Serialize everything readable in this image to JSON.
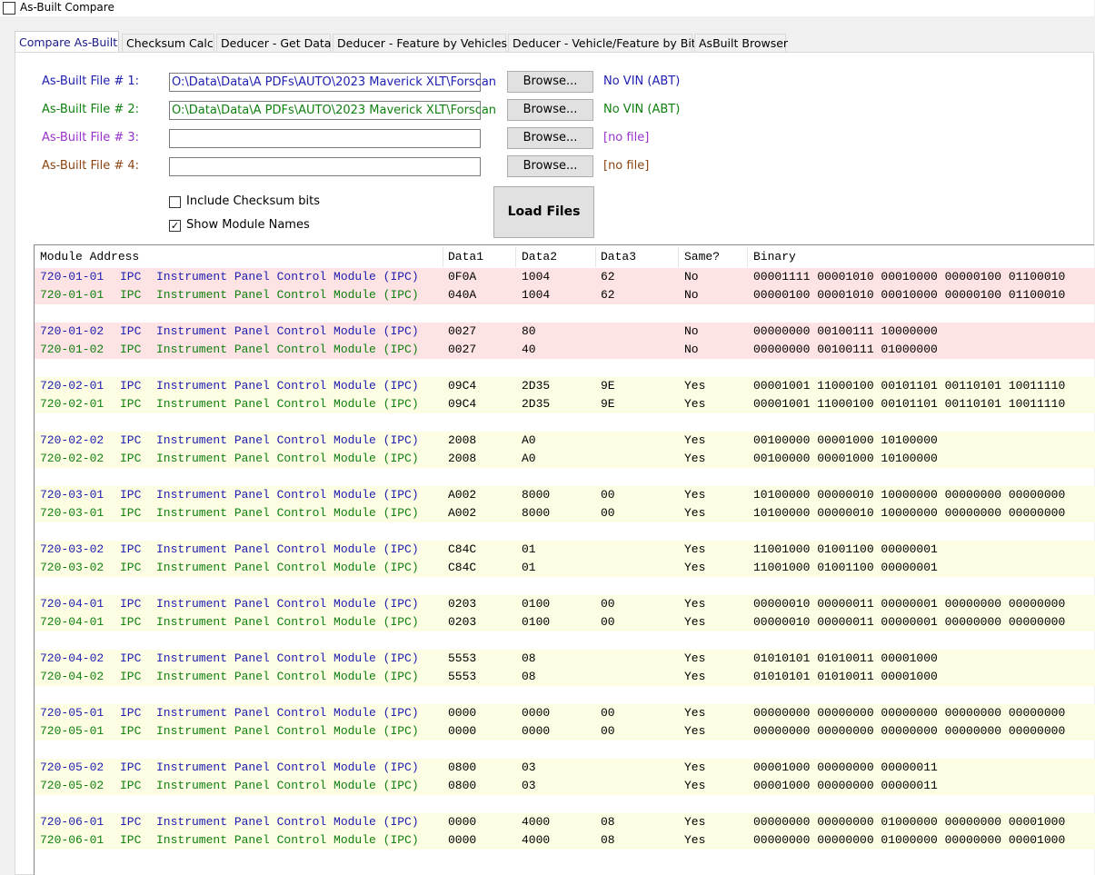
{
  "window": {
    "title": "As-Built Compare"
  },
  "tabs": [
    "Compare As-Built",
    "Checksum Calc",
    "Deducer - Get Data",
    "Deducer - Feature by Vehicles",
    "Deducer - Vehicle/Feature by Bit",
    "AsBuilt Browser"
  ],
  "files": [
    {
      "label": "As-Built File # 1:",
      "path": "O:\\Data\\Data\\A PDFs\\AUTO\\2023 Maverick XLT\\Forscan",
      "button": "Browse...",
      "status": "No VIN (ABT)"
    },
    {
      "label": "As-Built File # 2:",
      "path": "O:\\Data\\Data\\A PDFs\\AUTO\\2023 Maverick XLT\\Forscan",
      "button": "Browse...",
      "status": "No VIN (ABT)"
    },
    {
      "label": "As-Built File # 3:",
      "button": "Browse...",
      "status": "[no file]"
    },
    {
      "label": "As-Built File # 4:",
      "button": "Browse...",
      "status": "[no file]"
    }
  ],
  "options": [
    {
      "label": "Include Checksum bits",
      "checked": false
    },
    {
      "label": "Show Module Names",
      "checked": true
    }
  ],
  "load_button": "Load Files",
  "table": {
    "columns": [
      "Module Address",
      "Data1",
      "Data2",
      "Data3",
      "Same?",
      "Binary"
    ],
    "groups": [
      {
        "rows": [
          {
            "address": "720-01-01",
            "module": "IPC",
            "name": "Instrument Panel Control Module (IPC)",
            "data1": "0F0A",
            "data2": "1004",
            "data3": "62",
            "same": "No",
            "binary": "00001111 00001010 00010000 00000100 01100010"
          },
          {
            "address": "720-01-01",
            "module": "IPC",
            "name": "Instrument Panel Control Module (IPC)",
            "data1": "040A",
            "data2": "1004",
            "data3": "62",
            "same": "No",
            "binary": "00000100 00001010 00010000 00000100 01100010"
          }
        ]
      },
      {
        "rows": [
          {
            "address": "720-01-02",
            "module": "IPC",
            "name": "Instrument Panel Control Module (IPC)",
            "data1": "0027",
            "data2": "80",
            "same": "No",
            "binary": "00000000 00100111 10000000"
          },
          {
            "address": "720-01-02",
            "module": "IPC",
            "name": "Instrument Panel Control Module (IPC)",
            "data1": "0027",
            "data2": "40",
            "same": "No",
            "binary": "00000000 00100111 01000000"
          }
        ]
      },
      {
        "rows": [
          {
            "address": "720-02-01",
            "module": "IPC",
            "name": "Instrument Panel Control Module (IPC)",
            "data1": "09C4",
            "data2": "2D35",
            "data3": "9E",
            "same": "Yes",
            "binary": "00001001 11000100 00101101 00110101 10011110"
          },
          {
            "address": "720-02-01",
            "module": "IPC",
            "name": "Instrument Panel Control Module (IPC)",
            "data1": "09C4",
            "data2": "2D35",
            "data3": "9E",
            "same": "Yes",
            "binary": "00001001 11000100 00101101 00110101 10011110"
          }
        ]
      },
      {
        "rows": [
          {
            "address": "720-02-02",
            "module": "IPC",
            "name": "Instrument Panel Control Module (IPC)",
            "data1": "2008",
            "data2": "A0",
            "same": "Yes",
            "binary": "00100000 00001000 10100000"
          },
          {
            "address": "720-02-02",
            "module": "IPC",
            "name": "Instrument Panel Control Module (IPC)",
            "data1": "2008",
            "data2": "A0",
            "same": "Yes",
            "binary": "00100000 00001000 10100000"
          }
        ]
      },
      {
        "rows": [
          {
            "address": "720-03-01",
            "module": "IPC",
            "name": "Instrument Panel Control Module (IPC)",
            "data1": "A002",
            "data2": "8000",
            "data3": "00",
            "same": "Yes",
            "binary": "10100000 00000010 10000000 00000000 00000000"
          },
          {
            "address": "720-03-01",
            "module": "IPC",
            "name": "Instrument Panel Control Module (IPC)",
            "data1": "A002",
            "data2": "8000",
            "data3": "00",
            "same": "Yes",
            "binary": "10100000 00000010 10000000 00000000 00000000"
          }
        ]
      },
      {
        "rows": [
          {
            "address": "720-03-02",
            "module": "IPC",
            "name": "Instrument Panel Control Module (IPC)",
            "data1": "C84C",
            "data2": "01",
            "same": "Yes",
            "binary": "11001000 01001100 00000001"
          },
          {
            "address": "720-03-02",
            "module": "IPC",
            "name": "Instrument Panel Control Module (IPC)",
            "data1": "C84C",
            "data2": "01",
            "same": "Yes",
            "binary": "11001000 01001100 00000001"
          }
        ]
      },
      {
        "rows": [
          {
            "address": "720-04-01",
            "module": "IPC",
            "name": "Instrument Panel Control Module (IPC)",
            "data1": "0203",
            "data2": "0100",
            "data3": "00",
            "same": "Yes",
            "binary": "00000010 00000011 00000001 00000000 00000000"
          },
          {
            "address": "720-04-01",
            "module": "IPC",
            "name": "Instrument Panel Control Module (IPC)",
            "data1": "0203",
            "data2": "0100",
            "data3": "00",
            "same": "Yes",
            "binary": "00000010 00000011 00000001 00000000 00000000"
          }
        ]
      },
      {
        "rows": [
          {
            "address": "720-04-02",
            "module": "IPC",
            "name": "Instrument Panel Control Module (IPC)",
            "data1": "5553",
            "data2": "08",
            "same": "Yes",
            "binary": "01010101 01010011 00001000"
          },
          {
            "address": "720-04-02",
            "module": "IPC",
            "name": "Instrument Panel Control Module (IPC)",
            "data1": "5553",
            "data2": "08",
            "same": "Yes",
            "binary": "01010101 01010011 00001000"
          }
        ]
      },
      {
        "rows": [
          {
            "address": "720-05-01",
            "module": "IPC",
            "name": "Instrument Panel Control Module (IPC)",
            "data1": "0000",
            "data2": "0000",
            "data3": "00",
            "same": "Yes",
            "binary": "00000000 00000000 00000000 00000000 00000000"
          },
          {
            "address": "720-05-01",
            "module": "IPC",
            "name": "Instrument Panel Control Module (IPC)",
            "data1": "0000",
            "data2": "0000",
            "data3": "00",
            "same": "Yes",
            "binary": "00000000 00000000 00000000 00000000 00000000"
          }
        ]
      },
      {
        "rows": [
          {
            "address": "720-05-02",
            "module": "IPC",
            "name": "Instrument Panel Control Module (IPC)",
            "data1": "0800",
            "data2": "03",
            "same": "Yes",
            "binary": "00001000 00000000 00000011"
          },
          {
            "address": "720-05-02",
            "module": "IPC",
            "name": "Instrument Panel Control Module (IPC)",
            "data1": "0800",
            "data2": "03",
            "same": "Yes",
            "binary": "00001000 00000000 00000011"
          }
        ]
      },
      {
        "rows": [
          {
            "address": "720-06-01",
            "module": "IPC",
            "name": "Instrument Panel Control Module (IPC)",
            "data1": "0000",
            "data2": "4000",
            "data3": "08",
            "same": "Yes",
            "binary": "00000000 00000000 01000000 00000000 00001000"
          },
          {
            "address": "720-06-01",
            "module": "IPC",
            "name": "Instrument Panel Control Module (IPC)",
            "data1": "0000",
            "data2": "4000",
            "data3": "08",
            "same": "Yes",
            "binary": "00000000 00000000 01000000 00000000 00001000"
          }
        ]
      }
    ]
  }
}
